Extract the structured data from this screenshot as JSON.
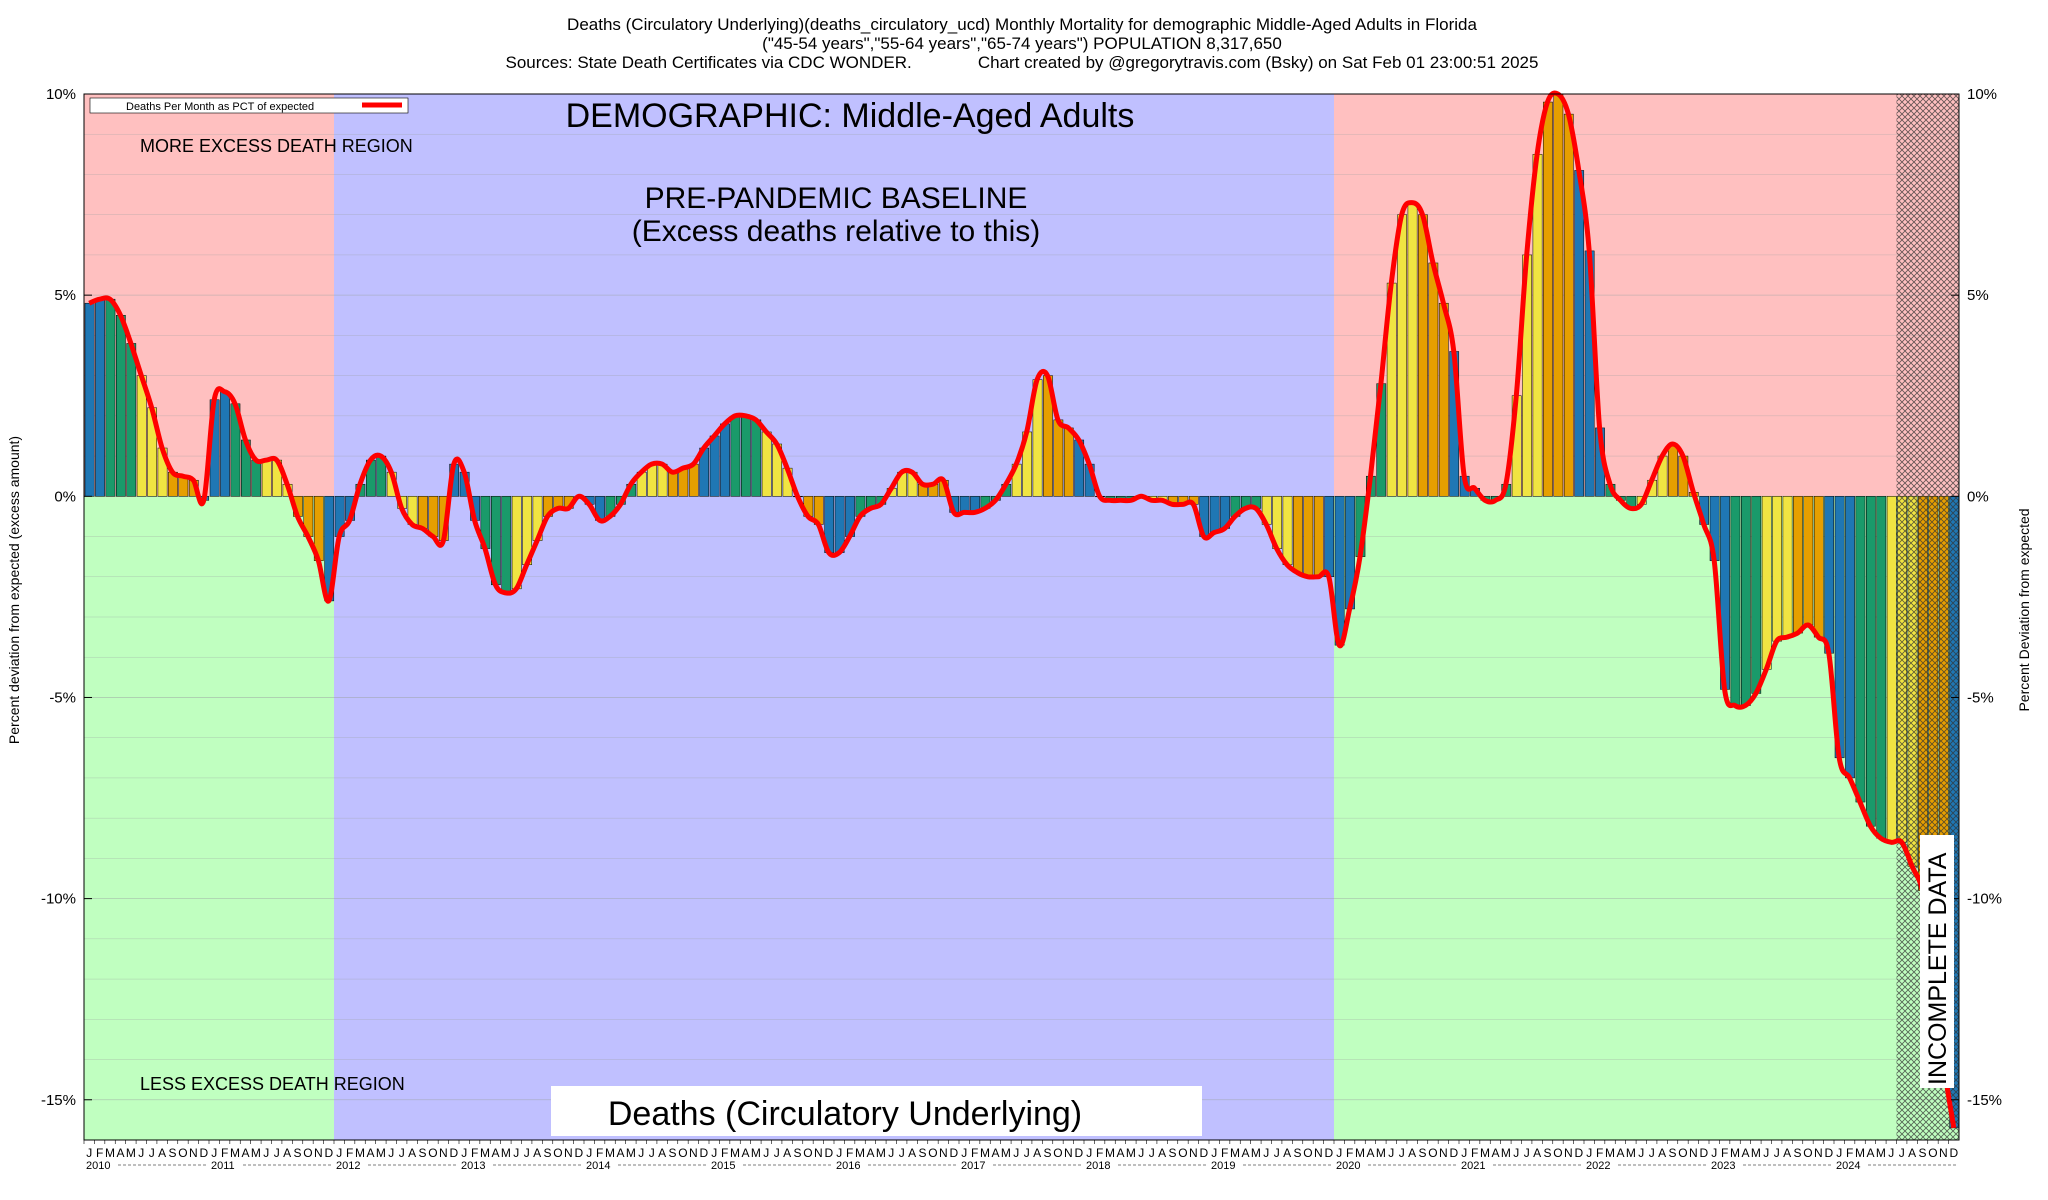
{
  "header": {
    "line1": "Deaths (Circulatory Underlying)(deaths_circulatory_ucd) Monthly Mortality for demographic Middle-Aged Adults in Florida",
    "line2": "(\"45-54 years\",\"55-64 years\",\"65-74 years\") POPULATION 8,317,650",
    "line3": "Sources: State Death Certificates via CDC WONDER.              Chart created by @gregorytravis.com (Bsky) on Sat Feb 01 23:00:51 2025"
  },
  "labels": {
    "demographic": "DEMOGRAPHIC: Middle-Aged Adults",
    "baseline_1": "PRE-PANDEMIC BASELINE",
    "baseline_2": "(Excess deaths relative to this)",
    "more_region": "MORE EXCESS DEATH REGION",
    "less_region": "LESS EXCESS DEATH REGION",
    "footer_title": "Deaths (Circulatory Underlying)",
    "incomplete": "INCOMPLETE DATA",
    "legend": "Deaths Per Month as PCT of expected"
  },
  "colors": {
    "more_region": "#ffc0c0",
    "less_region": "#c0ffc0",
    "baseline_region": "#c0c0ff",
    "line": "#ff0000",
    "bar_winter": "#1f77b4",
    "bar_spring": "#1a9a6a",
    "bar_summer": "#f0e442",
    "bar_fall": "#e69f00"
  },
  "chart_data": {
    "type": "bar",
    "ylabel": "Percent deviation from expected (excess amount)",
    "ylabel_right": "Percent Deviation from expected",
    "ylim": [
      -16,
      10
    ],
    "yticks": [
      "10%",
      "5%",
      "0%",
      "-5%",
      "-10%",
      "-15%"
    ],
    "ytick_values": [
      10,
      5,
      0,
      -5,
      -10,
      -15
    ],
    "month_letters": [
      "J",
      "F",
      "M",
      "A",
      "M",
      "J",
      "J",
      "A",
      "S",
      "O",
      "N",
      "D"
    ],
    "years": [
      "2010",
      "2011",
      "2012",
      "2013",
      "2014",
      "2015",
      "2016",
      "2017",
      "2018",
      "2019",
      "2020",
      "2021",
      "2022",
      "2023",
      "2024"
    ],
    "x_start": "2010-01",
    "baseline_period": [
      "2012-01",
      "2019-12"
    ],
    "incomplete_from": "2024-07",
    "series": [
      {
        "name": "Deaths Per Month as PCT of expected",
        "values": [
          4.8,
          4.9,
          4.9,
          4.5,
          3.8,
          3.0,
          2.2,
          1.2,
          0.6,
          0.5,
          0.4,
          -0.1,
          2.4,
          2.6,
          2.3,
          1.4,
          0.9,
          0.9,
          0.9,
          0.3,
          -0.5,
          -1.0,
          -1.6,
          -2.6,
          -1.0,
          -0.6,
          0.3,
          0.9,
          1.0,
          0.6,
          -0.3,
          -0.7,
          -0.8,
          -1.0,
          -1.1,
          0.8,
          0.6,
          -0.6,
          -1.3,
          -2.2,
          -2.4,
          -2.3,
          -1.7,
          -1.1,
          -0.5,
          -0.3,
          -0.3,
          0.0,
          -0.2,
          -0.6,
          -0.5,
          -0.2,
          0.3,
          0.6,
          0.8,
          0.8,
          0.6,
          0.7,
          0.8,
          1.2,
          1.5,
          1.8,
          2.0,
          2.0,
          1.9,
          1.6,
          1.3,
          0.7,
          0.0,
          -0.5,
          -0.7,
          -1.4,
          -1.4,
          -1.0,
          -0.5,
          -0.3,
          -0.2,
          0.2,
          0.6,
          0.6,
          0.3,
          0.3,
          0.4,
          -0.4,
          -0.4,
          -0.4,
          -0.3,
          -0.1,
          0.3,
          0.8,
          1.6,
          2.9,
          3.0,
          1.9,
          1.7,
          1.4,
          0.8,
          0.0,
          -0.1,
          -0.1,
          -0.1,
          0.0,
          -0.1,
          -0.1,
          -0.2,
          -0.2,
          -0.2,
          -1.0,
          -0.9,
          -0.8,
          -0.5,
          -0.3,
          -0.3,
          -0.7,
          -1.3,
          -1.7,
          -1.9,
          -2.0,
          -2.0,
          -2.0,
          -3.7,
          -2.8,
          -1.5,
          0.5,
          2.8,
          5.3,
          7.0,
          7.3,
          7.0,
          5.8,
          4.8,
          3.6,
          0.5,
          0.2,
          -0.1,
          -0.1,
          0.3,
          2.5,
          6.0,
          8.5,
          9.8,
          10.0,
          9.5,
          8.1,
          6.1,
          1.7,
          0.3,
          -0.1,
          -0.3,
          -0.2,
          0.4,
          1.0,
          1.3,
          1.0,
          0.1,
          -0.7,
          -1.6,
          -4.8,
          -5.2,
          -5.2,
          -4.9,
          -4.3,
          -3.6,
          -3.5,
          -3.4,
          -3.2,
          -3.5,
          -3.9,
          -6.5,
          -7.0,
          -7.6,
          -8.2,
          -8.5,
          -8.6,
          -8.6,
          -9.2,
          -9.8,
          -11.3,
          -14.0,
          -15.7
        ]
      }
    ]
  }
}
